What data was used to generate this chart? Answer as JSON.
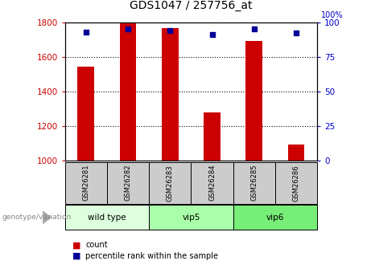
{
  "title": "GDS1047 / 257756_at",
  "samples": [
    "GSM26281",
    "GSM26282",
    "GSM26283",
    "GSM26284",
    "GSM26285",
    "GSM26286"
  ],
  "groups": [
    {
      "label": "wild type",
      "indices": [
        0,
        1
      ],
      "color": "#ddffdd"
    },
    {
      "label": "vip5",
      "indices": [
        2,
        3
      ],
      "color": "#aaffaa"
    },
    {
      "label": "vip6",
      "indices": [
        4,
        5
      ],
      "color": "#77ee77"
    }
  ],
  "bar_values": [
    1545,
    1800,
    1765,
    1280,
    1690,
    1095
  ],
  "percentile_values": [
    93,
    95,
    94,
    91,
    95,
    92
  ],
  "ylim_left": [
    1000,
    1800
  ],
  "ylim_right": [
    0,
    100
  ],
  "yticks_left": [
    1000,
    1200,
    1400,
    1600,
    1800
  ],
  "yticks_right": [
    0,
    25,
    50,
    75,
    100
  ],
  "bar_color": "#cc0000",
  "dot_color": "#000099",
  "left_tick_color": "#cc0000",
  "right_tick_color": "#0000cc",
  "label_row_color": "#cccccc",
  "genotype_label": "genotype/variation",
  "legend_count_label": "count",
  "legend_percentile_label": "percentile rank within the sample"
}
